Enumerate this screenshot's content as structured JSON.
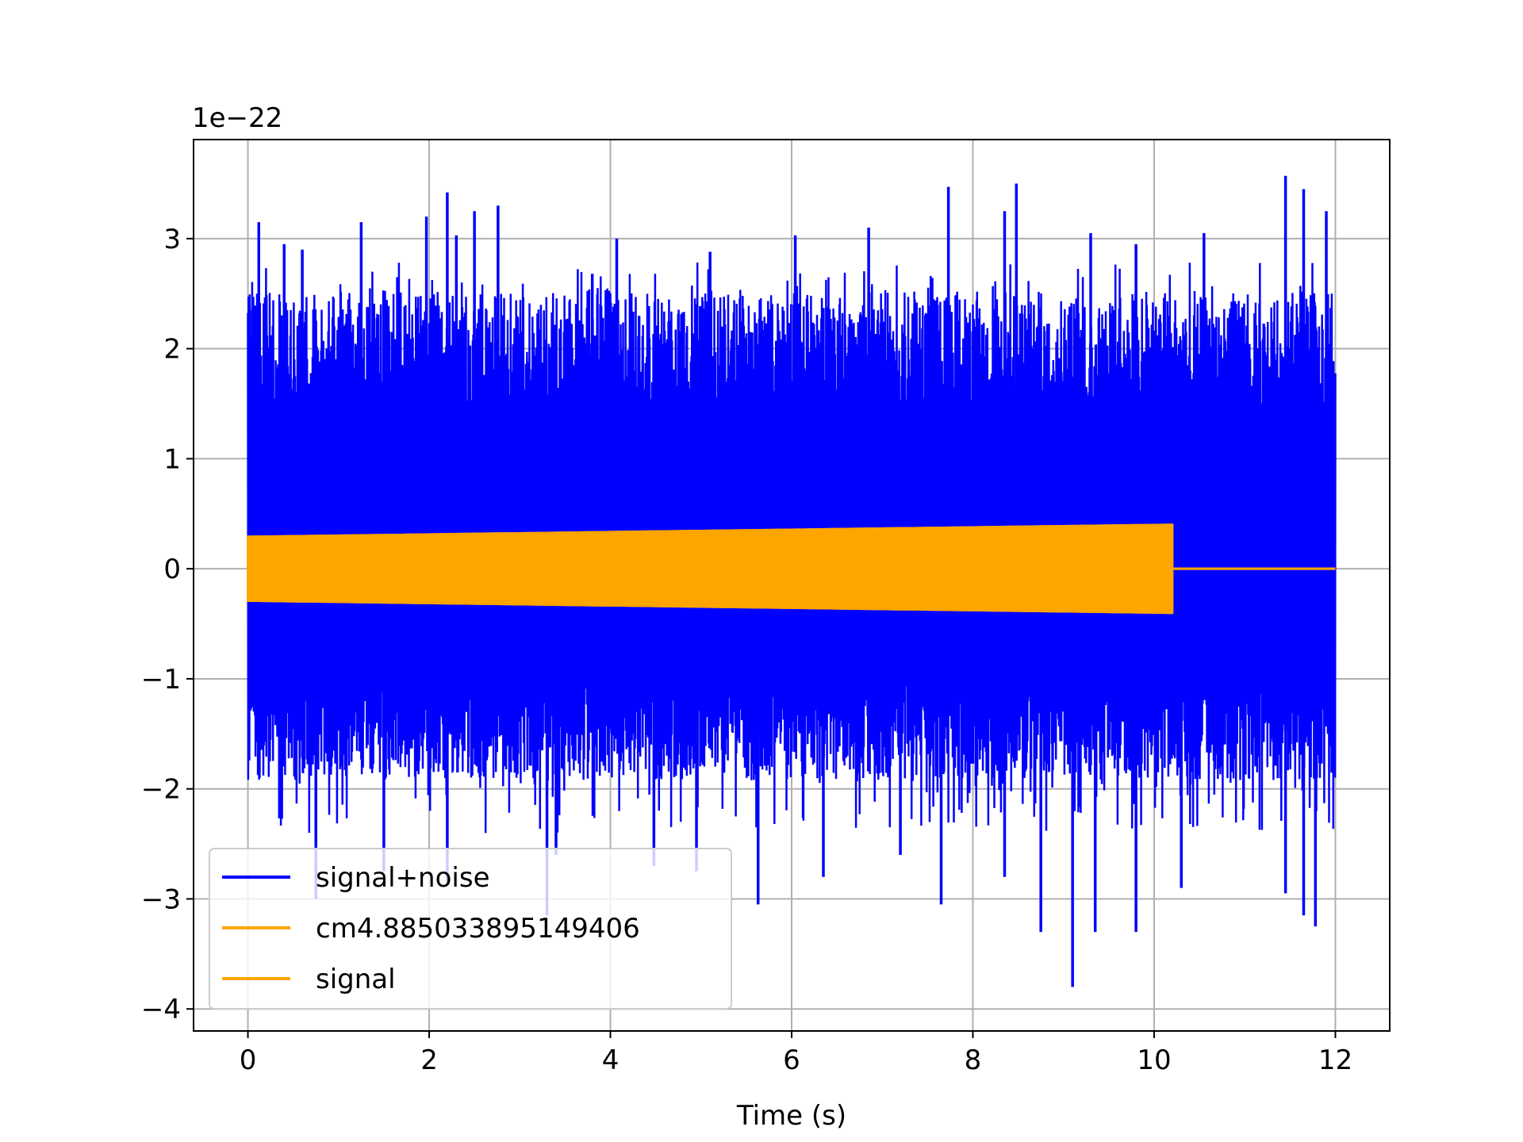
{
  "chart_data": {
    "type": "line",
    "title": "",
    "xlabel": "Time (s)",
    "ylabel": "",
    "y_offset_label": "1e−22",
    "xlim": [
      -0.6,
      12.6
    ],
    "ylim": [
      -4.2,
      3.9
    ],
    "x_ticks": [
      {
        "value": 0,
        "label": "0"
      },
      {
        "value": 2,
        "label": "2"
      },
      {
        "value": 4,
        "label": "4"
      },
      {
        "value": 6,
        "label": "6"
      },
      {
        "value": 8,
        "label": "8"
      },
      {
        "value": 10,
        "label": "10"
      },
      {
        "value": 12,
        "label": "12"
      }
    ],
    "y_ticks": [
      {
        "value": 3,
        "label": "3"
      },
      {
        "value": 2,
        "label": "2"
      },
      {
        "value": 1,
        "label": "1"
      },
      {
        "value": 0,
        "label": "0"
      },
      {
        "value": -1,
        "label": "−1"
      },
      {
        "value": -2,
        "label": "−2"
      },
      {
        "value": -3,
        "label": "−3"
      },
      {
        "value": -4,
        "label": "−4"
      }
    ],
    "grid": true,
    "legend_position": "lower-left",
    "series": [
      {
        "name": "signal+noise",
        "color": "#0000ff",
        "x_range": [
          0,
          12
        ],
        "band_upper": 2.2,
        "band_lower": -1.6,
        "extreme_peaks": [
          {
            "x": 0.02,
            "y": 2.35
          },
          {
            "x": 0.12,
            "y": 3.15
          },
          {
            "x": 0.4,
            "y": 2.95
          },
          {
            "x": 0.6,
            "y": 2.9
          },
          {
            "x": 1.25,
            "y": 3.15
          },
          {
            "x": 1.65,
            "y": 2.65
          },
          {
            "x": 1.97,
            "y": 3.2
          },
          {
            "x": 2.2,
            "y": 3.42
          },
          {
            "x": 2.3,
            "y": 3.03
          },
          {
            "x": 2.5,
            "y": 3.25
          },
          {
            "x": 2.76,
            "y": 3.3
          },
          {
            "x": 3.8,
            "y": 2.68
          },
          {
            "x": 4.07,
            "y": 3.0
          },
          {
            "x": 5.1,
            "y": 2.88
          },
          {
            "x": 6.04,
            "y": 3.03
          },
          {
            "x": 6.85,
            "y": 3.1
          },
          {
            "x": 7.73,
            "y": 3.47
          },
          {
            "x": 8.35,
            "y": 3.25
          },
          {
            "x": 8.48,
            "y": 3.5
          },
          {
            "x": 9.3,
            "y": 3.05
          },
          {
            "x": 9.8,
            "y": 2.95
          },
          {
            "x": 10.55,
            "y": 3.05
          },
          {
            "x": 11.45,
            "y": 3.57
          },
          {
            "x": 11.65,
            "y": 3.45
          },
          {
            "x": 11.9,
            "y": 3.25
          }
        ],
        "extreme_troughs": [
          {
            "x": 0.75,
            "y": -3.0
          },
          {
            "x": 1.5,
            "y": -2.75
          },
          {
            "x": 2.2,
            "y": -2.85
          },
          {
            "x": 3.3,
            "y": -3.15
          },
          {
            "x": 3.4,
            "y": -2.6
          },
          {
            "x": 4.48,
            "y": -2.7
          },
          {
            "x": 4.95,
            "y": -2.75
          },
          {
            "x": 5.63,
            "y": -3.05
          },
          {
            "x": 6.35,
            "y": -2.8
          },
          {
            "x": 7.2,
            "y": -2.6
          },
          {
            "x": 7.65,
            "y": -3.05
          },
          {
            "x": 8.35,
            "y": -2.8
          },
          {
            "x": 8.75,
            "y": -3.3
          },
          {
            "x": 9.1,
            "y": -3.8
          },
          {
            "x": 9.35,
            "y": -3.3
          },
          {
            "x": 9.8,
            "y": -3.3
          },
          {
            "x": 10.3,
            "y": -2.9
          },
          {
            "x": 11.45,
            "y": -2.95
          },
          {
            "x": 11.65,
            "y": -3.15
          },
          {
            "x": 11.78,
            "y": -3.25
          }
        ]
      },
      {
        "name": "cm4.885033895149406",
        "color": "#ffa500",
        "x_range": [
          0,
          12
        ],
        "amplitude_start": 0.29,
        "amplitude_end": 0.4,
        "end_time": 10.2
      },
      {
        "name": "signal",
        "color": "#ffa500",
        "x_range": [
          0,
          12
        ],
        "amplitude_start": 0.29,
        "amplitude_end": 0.4,
        "end_time": 10.2
      }
    ]
  }
}
